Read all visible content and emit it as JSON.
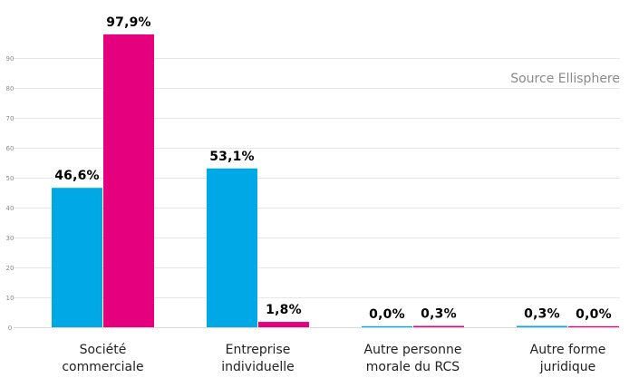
{
  "source": "Source Ellisphere",
  "colors": {
    "series_a": "#00a9e6",
    "series_b": "#e5007e"
  },
  "chart_data": {
    "type": "bar",
    "categories": [
      [
        "Société",
        "commerciale"
      ],
      [
        "Entreprise",
        "individuelle"
      ],
      [
        "Autre personne",
        "morale du RCS"
      ],
      [
        "Autre forme",
        "juridique"
      ]
    ],
    "series": [
      {
        "values": [
          46.6,
          53.1,
          0.0,
          0.3
        ],
        "labels": [
          "46,6%",
          "53,1%",
          "0,0%",
          "0,3%"
        ]
      },
      {
        "values": [
          97.9,
          1.8,
          0.3,
          0.0
        ],
        "labels": [
          "97,9%",
          "1,8%",
          "0,3%",
          "0,0%"
        ]
      }
    ],
    "yticks": [
      0,
      10,
      20,
      30,
      40,
      50,
      60,
      70,
      80,
      90
    ],
    "ylim": [
      0,
      100
    ],
    "grid": true,
    "legend": "none"
  }
}
